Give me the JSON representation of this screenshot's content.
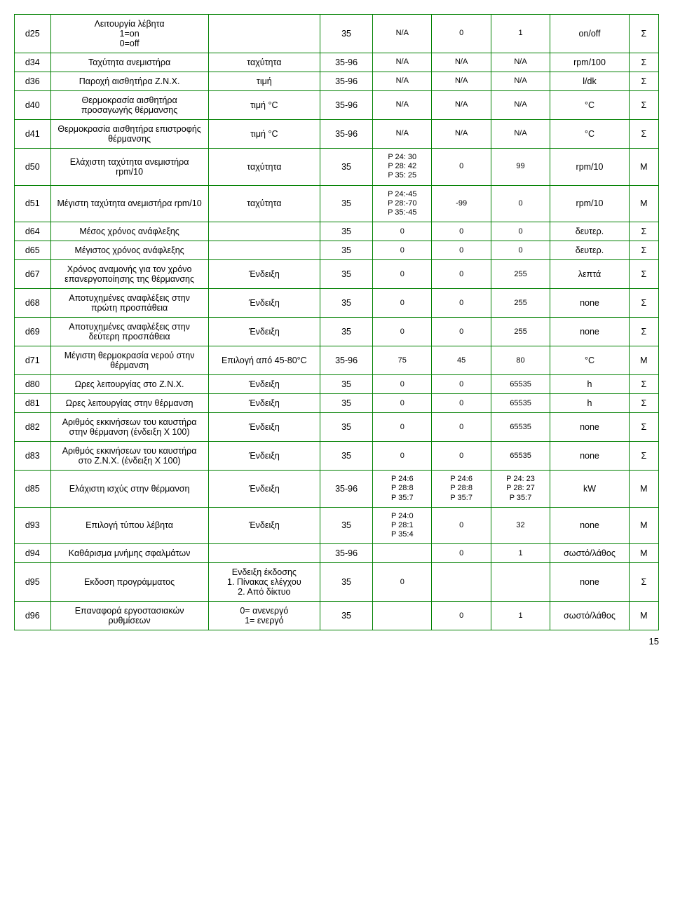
{
  "page_number": "15",
  "rows": [
    {
      "id": "d25",
      "desc": "Λειτουργία λέβητα\n1=on\n0=off",
      "c3": "",
      "c4": "35",
      "c5": "N/A",
      "c6": "0",
      "c7": "1",
      "c8": "on/off",
      "c9": "Σ"
    },
    {
      "id": "d34",
      "desc": "Ταχύτητα ανεμιστήρα",
      "c3": "ταχύτητα",
      "c4": "35-96",
      "c5": "N/A",
      "c6": "N/A",
      "c7": "N/A",
      "c8": "rpm/100",
      "c9": "Σ"
    },
    {
      "id": "d36",
      "desc": "Παροχή αισθητήρα Ζ.Ν.Χ.",
      "c3": "τιμή",
      "c4": "35-96",
      "c5": "N/A",
      "c6": "N/A",
      "c7": "N/A",
      "c8": "l/dk",
      "c9": "Σ"
    },
    {
      "id": "d40",
      "desc": "Θερμοκρασία αισθητήρα προσαγωγής θέρμανσης",
      "c3": "τιμή °C",
      "c4": "35-96",
      "c5": "N/A",
      "c6": "N/A",
      "c7": "N/A",
      "c8": "°C",
      "c9": "Σ"
    },
    {
      "id": "d41",
      "desc": "Θερμοκρασία αισθητήρα επιστροφής θέρμανσης",
      "c3": "τιμή °C",
      "c4": "35-96",
      "c5": "N/A",
      "c6": "N/A",
      "c7": "N/A",
      "c8": "°C",
      "c9": "Σ"
    },
    {
      "id": "d50",
      "desc": "Ελάχιστη ταχύτητα ανεμιστήρα rpm/10",
      "c3": "ταχύτητα",
      "c4": "35",
      "c5": "P 24: 30\nP 28: 42\nP 35: 25",
      "c6": "0",
      "c7": "99",
      "c8": "rpm/10",
      "c9": "M"
    },
    {
      "id": "d51",
      "desc": "Μέγιστη ταχύτητα ανεμιστήρα rpm/10",
      "c3": "ταχύτητα",
      "c4": "35",
      "c5": "P 24:-45\nP 28:-70\nP 35:-45",
      "c6": "-99",
      "c7": "0",
      "c8": "rpm/10",
      "c9": "M"
    },
    {
      "id": "d64",
      "desc": "Μέσος χρόνος ανάφλεξης",
      "c3": "",
      "c4": "35",
      "c5": "0",
      "c6": "0",
      "c7": "0",
      "c8": "δευτερ.",
      "c9": "Σ"
    },
    {
      "id": "d65",
      "desc": "Μέγιστος χρόνος ανάφλεξης",
      "c3": "",
      "c4": "35",
      "c5": "0",
      "c6": "0",
      "c7": "0",
      "c8": "δευτερ.",
      "c9": "Σ"
    },
    {
      "id": "d67",
      "desc": "Χρόνος αναμονής για τον χρόνο επανεργοποίησης της θέρμανσης",
      "c3": "Ένδειξη",
      "c4": "35",
      "c5": "0",
      "c6": "0",
      "c7": "255",
      "c8": "λεπτά",
      "c9": "Σ"
    },
    {
      "id": "d68",
      "desc": "Αποτυχημένες αναφλέξεις στην πρώτη προσπάθεια",
      "c3": "Ένδειξη",
      "c4": "35",
      "c5": "0",
      "c6": "0",
      "c7": "255",
      "c8": "none",
      "c9": "Σ"
    },
    {
      "id": "d69",
      "desc": "Αποτυχημένες αναφλέξεις στην δεύτερη προσπάθεια",
      "c3": "Ένδειξη",
      "c4": "35",
      "c5": "0",
      "c6": "0",
      "c7": "255",
      "c8": "none",
      "c9": "Σ"
    },
    {
      "id": "d71",
      "desc": "Μέγιστη θερμοκρασία νερού στην θέρμανση",
      "c3": "Επιλογή από 45-80°C",
      "c4": "35-96",
      "c5": "75",
      "c6": "45",
      "c7": "80",
      "c8": "°C",
      "c9": "M"
    },
    {
      "id": "d80",
      "desc": "Ωρες λειτουργίας στο Ζ.Ν.Χ.",
      "c3": "Ένδειξη",
      "c4": "35",
      "c5": "0",
      "c6": "0",
      "c7": "65535",
      "c8": "h",
      "c9": "Σ"
    },
    {
      "id": "d81",
      "desc": "Ωρες λειτουργίας στην θέρμανση",
      "c3": "Ένδειξη",
      "c4": "35",
      "c5": "0",
      "c6": "0",
      "c7": "65535",
      "c8": "h",
      "c9": "Σ"
    },
    {
      "id": "d82",
      "desc": "Αριθμός εκκινήσεων του καυστήρα στην θέρμανση (ένδειξη X 100)",
      "c3": "Ένδειξη",
      "c4": "35",
      "c5": "0",
      "c6": "0",
      "c7": "65535",
      "c8": "none",
      "c9": "Σ"
    },
    {
      "id": "d83",
      "desc": "Αριθμός εκκινήσεων του καυστήρα στο Ζ.Ν.Χ. (ένδειξη X 100)",
      "c3": "Ένδειξη",
      "c4": "35",
      "c5": "0",
      "c6": "0",
      "c7": "65535",
      "c8": "none",
      "c9": "Σ"
    },
    {
      "id": "d85",
      "desc": "Ελάχιστη ισχύς στην θέρμανση",
      "c3": "Ένδειξη",
      "c4": "35-96",
      "c5": "P 24:6\nP 28:8\nP 35:7",
      "c6": "P 24:6\nP 28:8\nP 35:7",
      "c7": "P 24: 23\nP 28: 27\nP 35:7",
      "c8": "kW",
      "c9": "M"
    },
    {
      "id": "d93",
      "desc": "Επιλογή τύπου λέβητα",
      "c3": "Ένδειξη",
      "c4": "35",
      "c5": "P 24:0\nP 28:1\nP 35:4",
      "c6": "0",
      "c7": "32",
      "c8": "none",
      "c9": "M"
    },
    {
      "id": "d94",
      "desc": "Καθάρισμα μνήμης σφαλμάτων",
      "c3": "",
      "c4": "35-96",
      "c5": "",
      "c6": "0",
      "c7": "1",
      "c8": "σωστό/λάθος",
      "c9": "M"
    },
    {
      "id": "d95",
      "desc": "Εκδοση προγράμματος",
      "c3": "Ενδειξη έκδοσης\n1. Πίνακας ελέγχου\n2. Από δίκτυο",
      "c4": "35",
      "c5": "0",
      "c6": "",
      "c7": "",
      "c8": "none",
      "c9": "Σ"
    },
    {
      "id": "d96",
      "desc": "Επαναφορά εργοστασιακών ρυθμίσεων",
      "c3": "0= ανενεργό\n1= ενεργό",
      "c4": "35",
      "c5": "",
      "c6": "0",
      "c7": "1",
      "c8": "σωστό/λάθος",
      "c9": "M"
    }
  ]
}
